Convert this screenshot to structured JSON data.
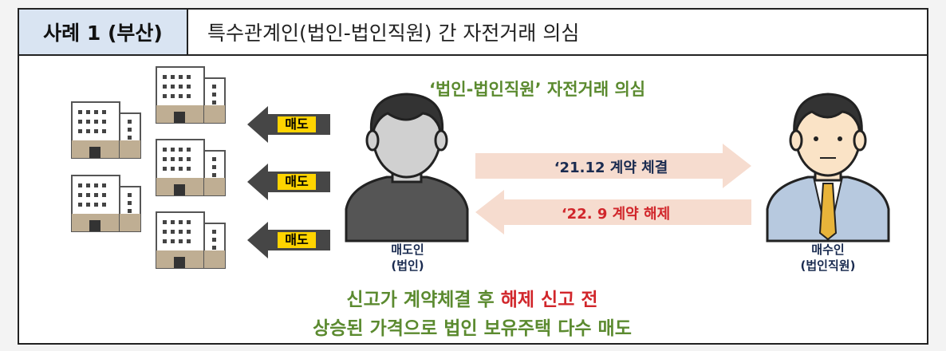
{
  "header": {
    "case_label": "사례 1 (부산)",
    "title": "특수관계인(법인-법인직원) 간 자전거래 의심"
  },
  "slogan": "‘법인-법인직원’ 자전거래 의심",
  "sell_arrows": [
    {
      "label": "매도"
    },
    {
      "label": "매도"
    },
    {
      "label": "매도"
    }
  ],
  "flows": [
    {
      "label": "‘21.12 계약 체결",
      "direction": "right",
      "text_color": "#1a2b50",
      "fill": "#f6dccf"
    },
    {
      "label": "‘22. 9 계약 해제",
      "direction": "left",
      "text_color": "#d1262b",
      "fill": "#f6dccf"
    }
  ],
  "seller": {
    "line1": "매도인",
    "line2": "(법인)"
  },
  "buyer": {
    "line1": "매수인",
    "line2": "(법인직원)"
  },
  "bottom": {
    "line1_a": "신고가 계약체결 후 ",
    "line1_b": "해제 신고 전",
    "line2": "상승된 가격으로 법인 보유주택 다수 매도"
  },
  "colors": {
    "header_bg": "#d9e4f2",
    "slogan": "#5b8a2f",
    "highlight_red": "#d1262b",
    "arrow_dark": "#464646",
    "arrow_label_bg": "#ffd400",
    "flow_fill": "#f6dccf"
  }
}
